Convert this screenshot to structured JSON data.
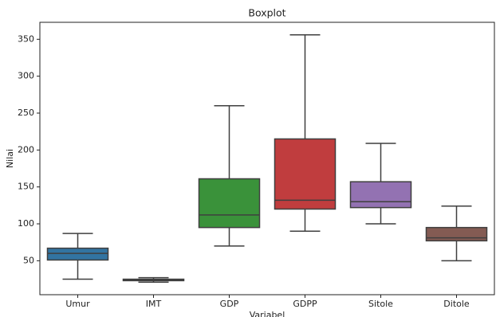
{
  "chart_data": {
    "type": "box",
    "title": "Boxplot",
    "x_label": "Variabel",
    "y_label": "Nilai",
    "categories": [
      "Umur",
      "IMT",
      "GDP",
      "GDPP",
      "Sitole",
      "Ditole"
    ],
    "colors": [
      "#3274a1",
      "#e1812c",
      "#3a923a",
      "#c03d3e",
      "#9372b2",
      "#845b53"
    ],
    "boxes": [
      {
        "min": 25,
        "q1": 51,
        "median": 60,
        "q3": 67,
        "max": 87
      },
      {
        "min": 21,
        "q1": 23,
        "median": 24,
        "q3": 25,
        "max": 27
      },
      {
        "min": 70,
        "q1": 95,
        "median": 112,
        "q3": 161,
        "max": 260
      },
      {
        "min": 90,
        "q1": 120,
        "median": 132,
        "q3": 215,
        "max": 356
      },
      {
        "min": 100,
        "q1": 122,
        "median": 130,
        "q3": 157,
        "max": 209
      },
      {
        "min": 50,
        "q1": 77,
        "median": 81,
        "q3": 95,
        "max": 124
      }
    ],
    "ylim": [
      4,
      373
    ],
    "yticks": [
      50,
      100,
      150,
      200,
      250,
      300,
      350
    ]
  }
}
